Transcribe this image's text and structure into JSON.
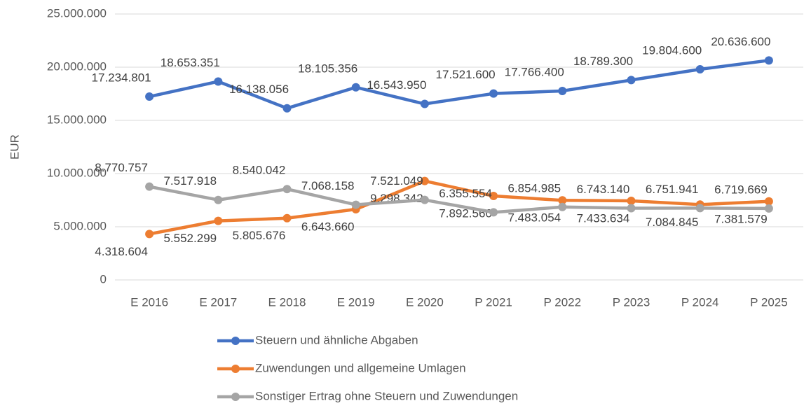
{
  "chart_data": {
    "type": "line",
    "y_label": "EUR",
    "categories": [
      "E 2016",
      "E 2017",
      "E 2018",
      "E 2019",
      "E 2020",
      "P 2021",
      "P 2022",
      "P 2023",
      "P 2024",
      "P 2025"
    ],
    "series": [
      {
        "name": "Steuern und ähnliche Abgaben",
        "color": "#4472c4",
        "values": [
          17234801,
          18653351,
          16138056,
          18105356,
          16543950,
          17521600,
          17766400,
          18789300,
          19804600,
          20636600
        ],
        "value_labels": [
          "17.234.801",
          "18.653.351",
          "16.138.056",
          "18.105.356",
          "16.543.950",
          "17.521.600",
          "17.766.400",
          "18.789.300",
          "19.804.600",
          "20.636.600"
        ]
      },
      {
        "name": "Zuwendungen und allgemeine Umlagen",
        "color": "#ed7d31",
        "values": [
          4318604,
          5552299,
          5805676,
          6643660,
          9298342,
          7892560,
          7483054,
          7433634,
          7084845,
          7381579
        ],
        "value_labels": [
          "4.318.604",
          "5.552.299",
          "5.805.676",
          "6.643.660",
          "9.298.342",
          "7.892.560",
          "7.483.054",
          "7.433.634",
          "7.084.845",
          "7.381.579"
        ]
      },
      {
        "name": "Sonstiger Ertrag ohne Steuern und Zuwendungen",
        "color": "#a5a5a5",
        "values": [
          8770757,
          7517918,
          8540042,
          7068158,
          7521049,
          6355554,
          6854985,
          6743140,
          6751941,
          6719669
        ],
        "value_labels": [
          "8.770.757",
          "7.517.918",
          "8.540.042",
          "7.068.158",
          "7.521.049",
          "6.355.554",
          "6.854.985",
          "6.743.140",
          "6.751.941",
          "6.719.669"
        ]
      }
    ],
    "ylim": [
      0,
      25000000
    ],
    "yticks": [
      0,
      {
        "value": 5000000,
        "label": "5.000.000"
      },
      {
        "value": 10000000,
        "label": "10.000.000"
      },
      {
        "value": 15000000,
        "label": "15.000.000"
      },
      {
        "value": 20000000,
        "label": "20.000.000"
      },
      {
        "value": 25000000,
        "label": "25.000.000"
      }
    ],
    "grid": true,
    "legend": "bottom"
  }
}
